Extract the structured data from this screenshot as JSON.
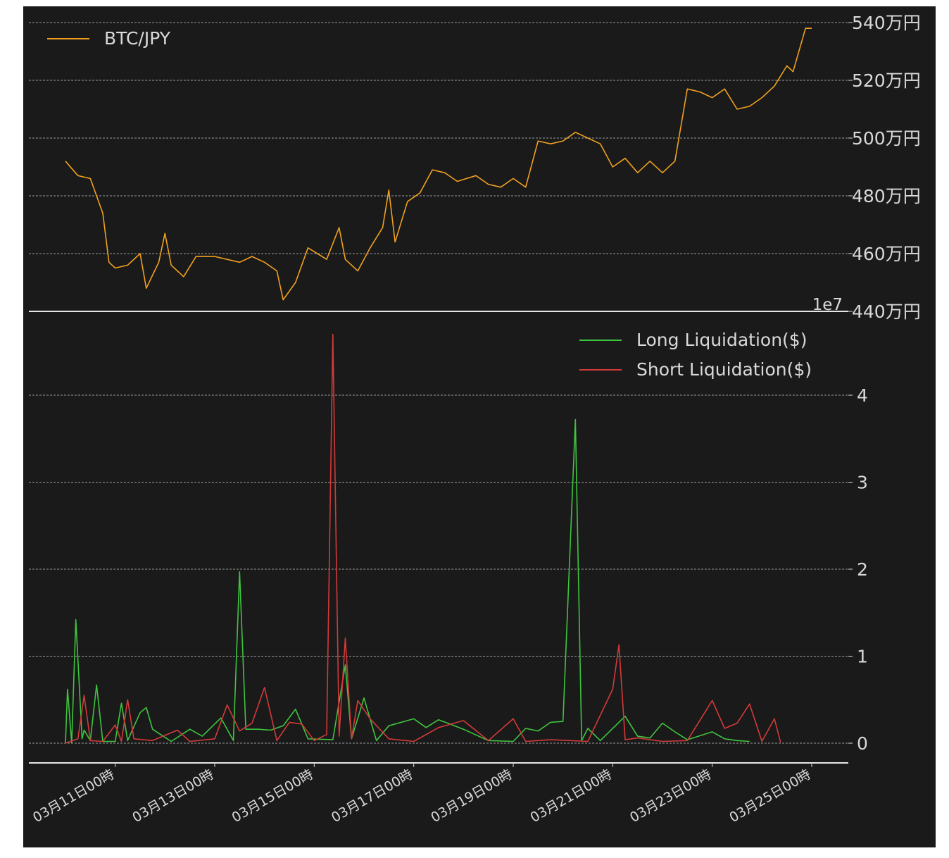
{
  "colors": {
    "background": "#1a1a1a",
    "page": "#ffffff",
    "text": "#d9d9d9",
    "grid": "#9a9a9a",
    "price": "#f0a020",
    "long": "#3fc43f",
    "short": "#d23a3a"
  },
  "chart_data": [
    {
      "type": "line",
      "title": "",
      "xlabel": "",
      "ylabel": "",
      "legend": {
        "placement": "top-left",
        "entries": [
          "BTC/JPY"
        ]
      },
      "grid": true,
      "ylim": [
        4400000,
        5400000
      ],
      "y_ticks": [
        {
          "value": 5400000,
          "label": "540万円"
        },
        {
          "value": 5200000,
          "label": "520万円"
        },
        {
          "value": 5000000,
          "label": "500万円"
        },
        {
          "value": 4800000,
          "label": "480万円"
        },
        {
          "value": 4600000,
          "label": "460万円"
        },
        {
          "value": 4400000,
          "label": "440万円"
        }
      ],
      "series": [
        {
          "name": "BTC/JPY",
          "color": "#f0a020",
          "points": [
            [
              "2024-03-10 00:00",
              4920000
            ],
            [
              "2024-03-10 06:00",
              4870000
            ],
            [
              "2024-03-10 12:00",
              4860000
            ],
            [
              "2024-03-10 18:00",
              4740000
            ],
            [
              "2024-03-10 21:00",
              4570000
            ],
            [
              "2024-03-11 00:00",
              4550000
            ],
            [
              "2024-03-11 06:00",
              4560000
            ],
            [
              "2024-03-11 12:00",
              4600000
            ],
            [
              "2024-03-11 15:00",
              4480000
            ],
            [
              "2024-03-11 21:00",
              4570000
            ],
            [
              "2024-03-12 00:00",
              4670000
            ],
            [
              "2024-03-12 03:00",
              4560000
            ],
            [
              "2024-03-12 09:00",
              4520000
            ],
            [
              "2024-03-12 15:00",
              4590000
            ],
            [
              "2024-03-13 00:00",
              4590000
            ],
            [
              "2024-03-13 12:00",
              4570000
            ],
            [
              "2024-03-13 18:00",
              4590000
            ],
            [
              "2024-03-14 00:00",
              4570000
            ],
            [
              "2024-03-14 06:00",
              4540000
            ],
            [
              "2024-03-14 09:00",
              4440000
            ],
            [
              "2024-03-14 15:00",
              4500000
            ],
            [
              "2024-03-14 21:00",
              4620000
            ],
            [
              "2024-03-15 06:00",
              4580000
            ],
            [
              "2024-03-15 12:00",
              4690000
            ],
            [
              "2024-03-15 15:00",
              4580000
            ],
            [
              "2024-03-15 21:00",
              4540000
            ],
            [
              "2024-03-16 03:00",
              4620000
            ],
            [
              "2024-03-16 09:00",
              4690000
            ],
            [
              "2024-03-16 12:00",
              4820000
            ],
            [
              "2024-03-16 15:00",
              4640000
            ],
            [
              "2024-03-16 21:00",
              4780000
            ],
            [
              "2024-03-17 03:00",
              4810000
            ],
            [
              "2024-03-17 09:00",
              4890000
            ],
            [
              "2024-03-17 15:00",
              4880000
            ],
            [
              "2024-03-17 21:00",
              4850000
            ],
            [
              "2024-03-18 06:00",
              4870000
            ],
            [
              "2024-03-18 12:00",
              4840000
            ],
            [
              "2024-03-18 18:00",
              4830000
            ],
            [
              "2024-03-19 00:00",
              4860000
            ],
            [
              "2024-03-19 06:00",
              4830000
            ],
            [
              "2024-03-19 12:00",
              4990000
            ],
            [
              "2024-03-19 18:00",
              4980000
            ],
            [
              "2024-03-20 00:00",
              4990000
            ],
            [
              "2024-03-20 06:00",
              5020000
            ],
            [
              "2024-03-20 12:00",
              5000000
            ],
            [
              "2024-03-20 18:00",
              4980000
            ],
            [
              "2024-03-21 00:00",
              4900000
            ],
            [
              "2024-03-21 06:00",
              4930000
            ],
            [
              "2024-03-21 12:00",
              4880000
            ],
            [
              "2024-03-21 18:00",
              4920000
            ],
            [
              "2024-03-22 00:00",
              4880000
            ],
            [
              "2024-03-22 06:00",
              4920000
            ],
            [
              "2024-03-22 12:00",
              5170000
            ],
            [
              "2024-03-22 18:00",
              5160000
            ],
            [
              "2024-03-23 00:00",
              5140000
            ],
            [
              "2024-03-23 06:00",
              5170000
            ],
            [
              "2024-03-23 12:00",
              5100000
            ],
            [
              "2024-03-23 18:00",
              5110000
            ],
            [
              "2024-03-24 00:00",
              5140000
            ],
            [
              "2024-03-24 06:00",
              5180000
            ],
            [
              "2024-03-24 12:00",
              5250000
            ],
            [
              "2024-03-24 15:00",
              5230000
            ],
            [
              "2024-03-24 21:00",
              5380000
            ],
            [
              "2024-03-25 00:00",
              5380000
            ]
          ]
        }
      ]
    },
    {
      "type": "line",
      "title": "",
      "xlabel": "",
      "ylabel": "",
      "legend": {
        "placement": "top-right",
        "entries": [
          "Long Liquidation($)",
          "Short Liquidation($)"
        ]
      },
      "grid": true,
      "ylim": [
        0,
        47000000
      ],
      "y_offset_label": "1e7",
      "y_ticks": [
        {
          "value": 0,
          "label": "0"
        },
        {
          "value": 10000000,
          "label": "1"
        },
        {
          "value": 20000000,
          "label": "2"
        },
        {
          "value": 30000000,
          "label": "3"
        },
        {
          "value": 40000000,
          "label": "4"
        }
      ],
      "x_ticks": [
        {
          "value": "2024-03-11 00:00",
          "label": "03月11日00時"
        },
        {
          "value": "2024-03-13 00:00",
          "label": "03月13日00時"
        },
        {
          "value": "2024-03-15 00:00",
          "label": "03月15日00時"
        },
        {
          "value": "2024-03-17 00:00",
          "label": "03月17日00時"
        },
        {
          "value": "2024-03-19 00:00",
          "label": "03月19日00時"
        },
        {
          "value": "2024-03-21 00:00",
          "label": "03月21日00時"
        },
        {
          "value": "2024-03-23 00:00",
          "label": "03月23日00時"
        },
        {
          "value": "2024-03-25 00:00",
          "label": "03月25日00時"
        }
      ],
      "series": [
        {
          "name": "Long Liquidation($)",
          "color": "#3fc43f",
          "points": [
            [
              "2024-03-10 00:00",
              0
            ],
            [
              "2024-03-10 01:00",
              6200000
            ],
            [
              "2024-03-10 03:00",
              0
            ],
            [
              "2024-03-10 05:00",
              14200000
            ],
            [
              "2024-03-10 08:00",
              500000
            ],
            [
              "2024-03-10 09:00",
              1500000
            ],
            [
              "2024-03-10 12:00",
              300000
            ],
            [
              "2024-03-10 15:00",
              6700000
            ],
            [
              "2024-03-10 18:00",
              200000
            ],
            [
              "2024-03-11 00:00",
              200000
            ],
            [
              "2024-03-11 03:00",
              4600000
            ],
            [
              "2024-03-11 06:00",
              300000
            ],
            [
              "2024-03-11 12:00",
              3500000
            ],
            [
              "2024-03-11 15:00",
              4100000
            ],
            [
              "2024-03-11 18:00",
              1600000
            ],
            [
              "2024-03-12 03:00",
              200000
            ],
            [
              "2024-03-12 12:00",
              1600000
            ],
            [
              "2024-03-12 18:00",
              800000
            ],
            [
              "2024-03-13 03:00",
              2900000
            ],
            [
              "2024-03-13 09:00",
              300000
            ],
            [
              "2024-03-13 12:00",
              19700000
            ],
            [
              "2024-03-13 15:00",
              1600000
            ],
            [
              "2024-03-13 21:00",
              1600000
            ],
            [
              "2024-03-14 03:00",
              1500000
            ],
            [
              "2024-03-14 09:00",
              2000000
            ],
            [
              "2024-03-14 15:00",
              3900000
            ],
            [
              "2024-03-14 21:00",
              500000
            ],
            [
              "2024-03-15 09:00",
              400000
            ],
            [
              "2024-03-15 15:00",
              9000000
            ],
            [
              "2024-03-15 18:00",
              500000
            ],
            [
              "2024-03-16 00:00",
              5200000
            ],
            [
              "2024-03-16 06:00",
              300000
            ],
            [
              "2024-03-16 12:00",
              2000000
            ],
            [
              "2024-03-17 00:00",
              2800000
            ],
            [
              "2024-03-17 06:00",
              1800000
            ],
            [
              "2024-03-17 12:00",
              2700000
            ],
            [
              "2024-03-18 00:00",
              1600000
            ],
            [
              "2024-03-18 12:00",
              300000
            ],
            [
              "2024-03-19 00:00",
              200000
            ],
            [
              "2024-03-19 06:00",
              1700000
            ],
            [
              "2024-03-19 12:00",
              1400000
            ],
            [
              "2024-03-19 18:00",
              2400000
            ],
            [
              "2024-03-20 00:00",
              2500000
            ],
            [
              "2024-03-20 06:00",
              37200000
            ],
            [
              "2024-03-20 09:00",
              300000
            ],
            [
              "2024-03-20 12:00",
              1700000
            ],
            [
              "2024-03-20 18:00",
              300000
            ],
            [
              "2024-03-21 06:00",
              3100000
            ],
            [
              "2024-03-21 12:00",
              800000
            ],
            [
              "2024-03-21 18:00",
              600000
            ],
            [
              "2024-03-22 00:00",
              2300000
            ],
            [
              "2024-03-22 06:00",
              1300000
            ],
            [
              "2024-03-22 12:00",
              400000
            ],
            [
              "2024-03-23 00:00",
              1300000
            ],
            [
              "2024-03-23 06:00",
              500000
            ],
            [
              "2024-03-23 12:00",
              300000
            ],
            [
              "2024-03-23 18:00",
              200000
            ]
          ]
        },
        {
          "name": "Short Liquidation($)",
          "color": "#d23a3a",
          "points": [
            [
              "2024-03-10 00:00",
              0
            ],
            [
              "2024-03-10 06:00",
              500000
            ],
            [
              "2024-03-10 09:00",
              5500000
            ],
            [
              "2024-03-10 12:00",
              300000
            ],
            [
              "2024-03-10 18:00",
              200000
            ],
            [
              "2024-03-11 00:00",
              2100000
            ],
            [
              "2024-03-11 03:00",
              200000
            ],
            [
              "2024-03-11 06:00",
              5000000
            ],
            [
              "2024-03-11 09:00",
              500000
            ],
            [
              "2024-03-11 18:00",
              300000
            ],
            [
              "2024-03-12 06:00",
              1500000
            ],
            [
              "2024-03-12 12:00",
              200000
            ],
            [
              "2024-03-13 00:00",
              500000
            ],
            [
              "2024-03-13 06:00",
              4400000
            ],
            [
              "2024-03-13 12:00",
              1400000
            ],
            [
              "2024-03-13 18:00",
              2300000
            ],
            [
              "2024-03-14 00:00",
              6400000
            ],
            [
              "2024-03-14 06:00",
              300000
            ],
            [
              "2024-03-14 12:00",
              2400000
            ],
            [
              "2024-03-14 18:00",
              2200000
            ],
            [
              "2024-03-15 00:00",
              300000
            ],
            [
              "2024-03-15 06:00",
              1000000
            ],
            [
              "2024-03-15 09:00",
              47000000
            ],
            [
              "2024-03-15 12:00",
              800000
            ],
            [
              "2024-03-15 15:00",
              12100000
            ],
            [
              "2024-03-15 18:00",
              500000
            ],
            [
              "2024-03-15 21:00",
              4900000
            ],
            [
              "2024-03-16 03:00",
              2800000
            ],
            [
              "2024-03-16 12:00",
              500000
            ],
            [
              "2024-03-17 00:00",
              200000
            ],
            [
              "2024-03-17 12:00",
              1800000
            ],
            [
              "2024-03-18 00:00",
              2600000
            ],
            [
              "2024-03-18 12:00",
              300000
            ],
            [
              "2024-03-19 00:00",
              2800000
            ],
            [
              "2024-03-19 06:00",
              200000
            ],
            [
              "2024-03-19 18:00",
              400000
            ],
            [
              "2024-03-20 12:00",
              200000
            ],
            [
              "2024-03-21 00:00",
              6200000
            ],
            [
              "2024-03-21 03:00",
              11300000
            ],
            [
              "2024-03-21 06:00",
              400000
            ],
            [
              "2024-03-21 12:00",
              600000
            ],
            [
              "2024-03-22 00:00",
              200000
            ],
            [
              "2024-03-22 12:00",
              300000
            ],
            [
              "2024-03-23 00:00",
              4900000
            ],
            [
              "2024-03-23 06:00",
              1700000
            ],
            [
              "2024-03-23 12:00",
              2300000
            ],
            [
              "2024-03-23 18:00",
              4500000
            ],
            [
              "2024-03-24 00:00",
              200000
            ],
            [
              "2024-03-24 06:00",
              2800000
            ],
            [
              "2024-03-24 09:00",
              100000
            ]
          ]
        }
      ]
    }
  ]
}
